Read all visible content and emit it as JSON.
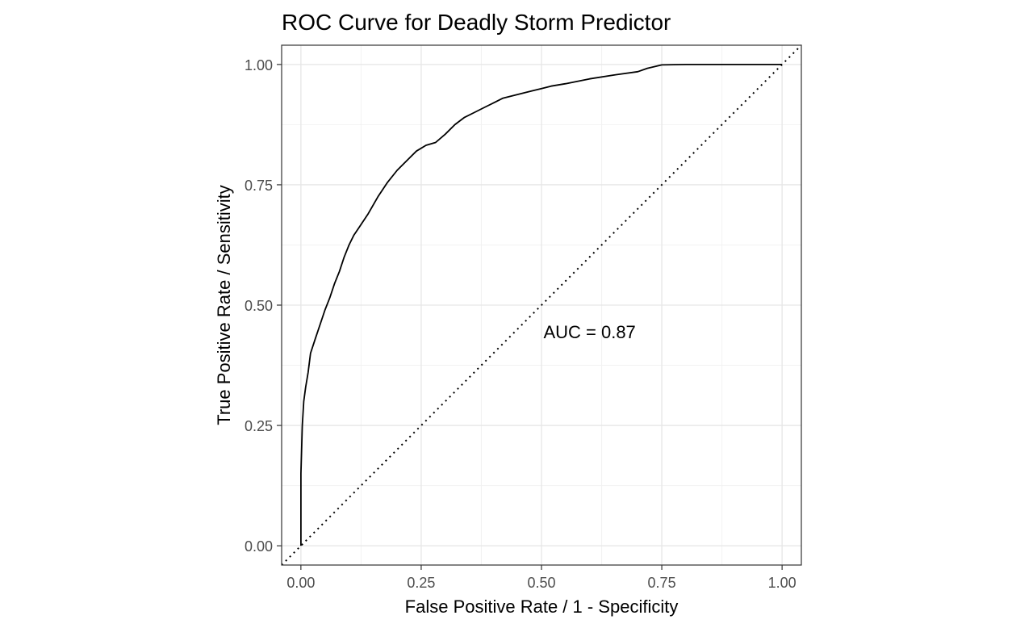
{
  "chart_data": {
    "type": "line",
    "title": "ROC Curve for Deadly Storm Predictor",
    "xlabel": "False Positive Rate / 1 - Specificity",
    "ylabel": "True Positive Rate / Sensitivity",
    "xlim": [
      -0.04,
      1.04
    ],
    "ylim": [
      -0.04,
      1.04
    ],
    "x_ticks": [
      0.0,
      0.25,
      0.5,
      0.75,
      1.0
    ],
    "x_tick_labels": [
      "0.00",
      "0.25",
      "0.50",
      "0.75",
      "1.00"
    ],
    "y_ticks": [
      0.0,
      0.25,
      0.5,
      0.75,
      1.0
    ],
    "y_tick_labels": [
      "0.00",
      "0.25",
      "0.50",
      "0.75",
      "1.00"
    ],
    "grid": true,
    "annotation": {
      "text": "AUC = 0.87",
      "x": 0.6,
      "y": 0.445
    },
    "series": [
      {
        "style": "solid",
        "color": "#000000",
        "x": [
          0.0,
          0.0,
          0.003,
          0.006,
          0.01,
          0.015,
          0.02,
          0.03,
          0.04,
          0.05,
          0.06,
          0.07,
          0.08,
          0.09,
          0.1,
          0.11,
          0.12,
          0.14,
          0.16,
          0.18,
          0.2,
          0.22,
          0.24,
          0.26,
          0.28,
          0.3,
          0.32,
          0.34,
          0.36,
          0.38,
          0.4,
          0.42,
          0.44,
          0.46,
          0.48,
          0.5,
          0.52,
          0.55,
          0.6,
          0.65,
          0.7,
          0.72,
          0.75,
          0.8,
          0.9,
          1.0
        ],
        "y": [
          0.0,
          0.15,
          0.25,
          0.3,
          0.33,
          0.36,
          0.4,
          0.43,
          0.46,
          0.49,
          0.515,
          0.545,
          0.57,
          0.6,
          0.625,
          0.645,
          0.66,
          0.69,
          0.725,
          0.755,
          0.78,
          0.8,
          0.82,
          0.832,
          0.838,
          0.855,
          0.875,
          0.89,
          0.9,
          0.91,
          0.92,
          0.93,
          0.935,
          0.94,
          0.945,
          0.95,
          0.955,
          0.96,
          0.97,
          0.978,
          0.985,
          0.992,
          0.999,
          1.0,
          1.0,
          1.0
        ]
      },
      {
        "style": "dotted",
        "color": "#000000",
        "x": [
          -0.04,
          1.04
        ],
        "y": [
          -0.04,
          1.04
        ]
      }
    ]
  }
}
